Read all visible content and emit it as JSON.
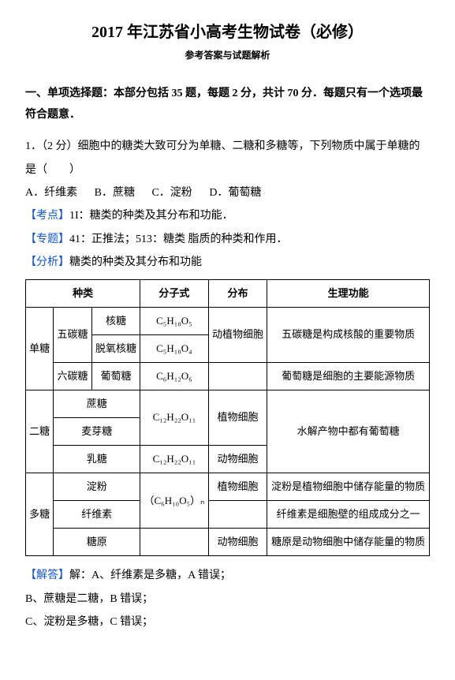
{
  "title": "2017 年江苏省小高考生物试卷（必修）",
  "subtitle": "参考答案与试题解析",
  "section": "一、单项选择题：本部分包括 35 题，每题 2 分，共计 70 分．每题只有一个选项最符合题意．",
  "q1": {
    "stem": "1．（2 分）细胞中的糖类大致可分为单糖、二糖和多糖等，下列物质中属于单糖的是（　　）",
    "opts": {
      "A": "A．纤维素",
      "B": "B．蔗糖",
      "C": "C．淀粉",
      "D": "D．葡萄糖"
    },
    "kd_label": "【考点】",
    "kd": "1I：糖类的种类及其分布和功能．",
    "zt_label": "【专题】",
    "zt": "41：正推法；513：糖类 脂质的种类和作用．",
    "fx_label": "【分析】",
    "fx": "糖类的种类及其分布和功能",
    "jd_label": "【解答】",
    "jd": "解：A、纤维素是多糖，A 错误；",
    "jdB": "B、蔗糖是二糖，B 错误；",
    "jdC": "C、淀粉是多糖，C 错误；"
  },
  "table": {
    "headers": {
      "kind": "种类",
      "formula": "分子式",
      "dist": "分布",
      "func": "生理功能"
    },
    "mono": "单糖",
    "pent": "五碳糖",
    "ribose": "核糖",
    "ribose_f": "C₅H₁₀O₅",
    "deoxy": "脱氧核糖",
    "deoxy_f": "C₅H₁₀O₄",
    "hex": "六碳糖",
    "glucose": "葡萄糖",
    "glucose_f": "C₆H₁₂O₆",
    "animal_plant_cell": "动植物细胞",
    "f_pent": "五碳糖是构成核酸的重要物质",
    "f_glu": "葡萄糖是细胞的主要能源物质",
    "di": "二糖",
    "sucrose": "蔗糖",
    "sucrose_f": "C₁₂H₂₂O₁₁",
    "maltose": "麦芽糖",
    "lactose": "乳糖",
    "lactose_f": "C₁₂H₂₂O₁₁",
    "plant_cell": "植物细胞",
    "animal_cell": "动物细胞",
    "f_di": "水解产物中都有葡萄糖",
    "poly": "多糖",
    "starch": "淀粉",
    "starch_f": "（C₆H₁₀O₅）ₙ",
    "cellulose": "纤维素",
    "glycogen": "糖原",
    "f_starch": "淀粉是植物细胞中储存能量的物质",
    "f_cell": "纤维素是细胞壁的组成成分之一",
    "f_gly": "糖原是动物细胞中储存能量的物质"
  }
}
